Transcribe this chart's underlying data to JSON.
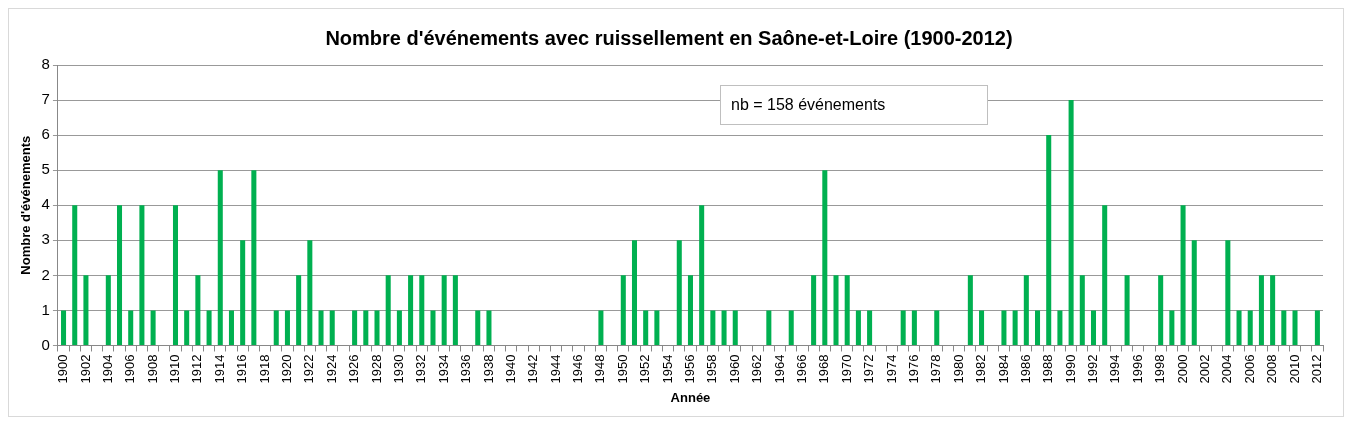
{
  "chart_data": {
    "type": "bar",
    "title": "Nombre d'événements avec ruissellement en Saône-et-Loire (1900-2012)",
    "xlabel": "Année",
    "ylabel": "Nombre d'événements",
    "categories": [
      "1900",
      null,
      "1902",
      null,
      "1904",
      null,
      "1906",
      null,
      "1908",
      null,
      "1910",
      null,
      "1912",
      null,
      "1914",
      null,
      "1916",
      null,
      "1918",
      null,
      "1920",
      null,
      "1922",
      null,
      "1924",
      null,
      "1926",
      null,
      "1928",
      null,
      "1930",
      null,
      "1932",
      null,
      "1934",
      null,
      "1936",
      null,
      "1938",
      null,
      "1940",
      null,
      "1942",
      null,
      "1944",
      null,
      "1946",
      null,
      "1948",
      null,
      "1950",
      null,
      "1952",
      null,
      "1954",
      null,
      "1956",
      null,
      "1958",
      null,
      "1960",
      null,
      "1962",
      null,
      "1964",
      null,
      "1966",
      null,
      "1968",
      null,
      "1970",
      null,
      "1972",
      null,
      "1974",
      null,
      "1976",
      null,
      "1978",
      null,
      "1980",
      null,
      "1982",
      null,
      "1984",
      null,
      "1986",
      null,
      "1988",
      null,
      "1990",
      null,
      "1992",
      null,
      "1994",
      null,
      "1996",
      null,
      "1998",
      null,
      "2000",
      null,
      "2002",
      null,
      "2004",
      null,
      "2006",
      null,
      "2008",
      null,
      "2010",
      null,
      "2012"
    ],
    "values": [
      1,
      4,
      2,
      0,
      2,
      4,
      1,
      4,
      1,
      0,
      4,
      1,
      2,
      1,
      5,
      1,
      3,
      5,
      0,
      1,
      1,
      2,
      3,
      1,
      1,
      0,
      1,
      1,
      1,
      2,
      1,
      2,
      2,
      1,
      2,
      2,
      0,
      1,
      1,
      0,
      0,
      0,
      0,
      0,
      0,
      0,
      0,
      0,
      1,
      0,
      2,
      3,
      1,
      1,
      0,
      3,
      2,
      4,
      1,
      1,
      1,
      0,
      0,
      1,
      0,
      1,
      0,
      2,
      5,
      2,
      2,
      1,
      1,
      0,
      0,
      1,
      1,
      0,
      1,
      0,
      0,
      2,
      1,
      0,
      1,
      1,
      2,
      1,
      6,
      1,
      7,
      2,
      1,
      4,
      0,
      2,
      0,
      0,
      2,
      1,
      4,
      3,
      0,
      0,
      3,
      1,
      1,
      2,
      2,
      1,
      1,
      0,
      1
    ],
    "color": "#00b050",
    "ylim": [
      0,
      8
    ],
    "yticks": [
      0,
      1,
      2,
      3,
      4,
      5,
      6,
      7,
      8
    ],
    "grid": "y",
    "annotations": [
      "nb = 158 événements"
    ]
  }
}
